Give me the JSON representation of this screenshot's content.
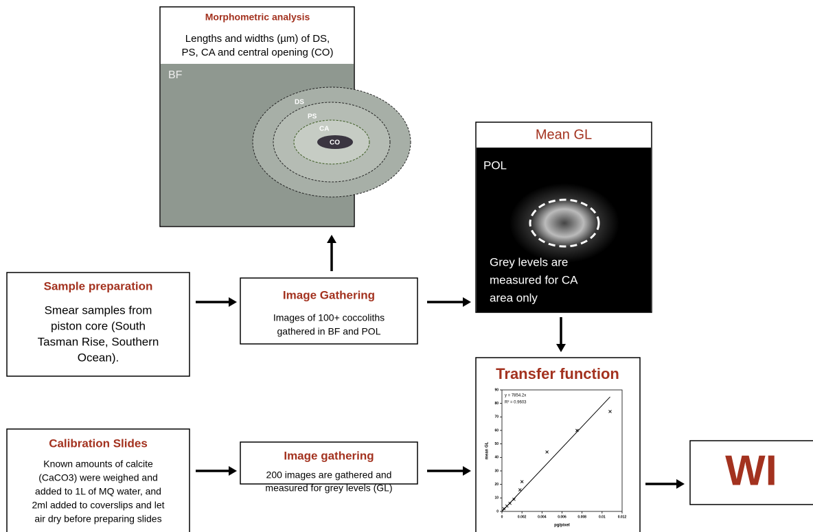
{
  "morphometric": {
    "title": "Morphometric analysis",
    "lines": [
      "Lengths and widths (µm) of DS,",
      "PS, CA and central opening (CO)"
    ],
    "image_label": "BF",
    "rings": [
      "DS",
      "PS",
      "CA",
      "CO"
    ]
  },
  "mean_gl": {
    "title": "Mean GL",
    "image_label": "POL",
    "caption": [
      "Grey levels are",
      "measured for CA",
      "area only"
    ]
  },
  "sample_preparation": {
    "title": "Sample preparation",
    "lines": [
      "Smear samples from",
      "piston core (South",
      "Tasman Rise, Southern",
      "Ocean)."
    ]
  },
  "image_gathering_1": {
    "title": "Image Gathering",
    "lines": [
      "Images of 100+ coccoliths",
      "gathered in BF and POL"
    ]
  },
  "calibration_slides": {
    "title": "Calibration Slides",
    "lines": [
      "Known amounts of calcite",
      "(CaCO3) were weighed and",
      "added to 1L of MQ water, and",
      "2ml added to coverslips and let",
      "air dry before preparing slides"
    ]
  },
  "image_gathering_2": {
    "title": "Image gathering",
    "lines": [
      "200 images are gathered and",
      "measured for grey levels (GL)"
    ]
  },
  "transfer_function": {
    "title": "Transfer function",
    "plot": {
      "equation": "y = 7854.2x",
      "r2": "R² = 0.9603",
      "slope": 7854.2,
      "xlabel": "pg/pixel",
      "ylabel": "mean GL",
      "xlim": [
        0,
        0.012
      ],
      "ylim": [
        0,
        90
      ],
      "xticks": [
        0,
        0.002,
        0.004,
        0.006,
        0.008,
        0.01,
        0.012
      ],
      "yticks": [
        0,
        10,
        20,
        30,
        40,
        50,
        60,
        70,
        80,
        90
      ],
      "x": [
        0.0002,
        0.0005,
        0.0008,
        0.0012,
        0.0018,
        0.002,
        0.0045,
        0.0075,
        0.0108
      ],
      "y": [
        2,
        4,
        6,
        9,
        16,
        22,
        44,
        60,
        74
      ]
    }
  },
  "result": {
    "label": "WI"
  }
}
